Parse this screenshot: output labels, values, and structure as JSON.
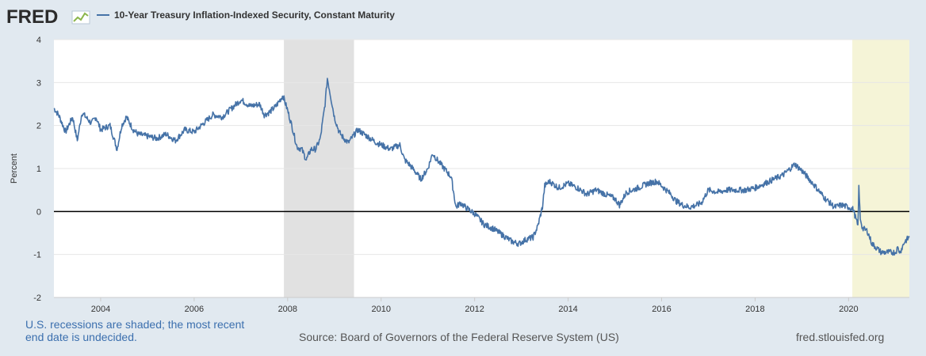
{
  "header": {
    "logo_text": "FRED",
    "legend_label": "10-Year Treasury Inflation-Indexed Security, Constant Maturity"
  },
  "footer": {
    "recession_note": "U.S. recessions are shaded; the most recent end date is undecided.",
    "source": "Source: Board of Governors of the Federal Reserve System (US)",
    "url": "fred.stlouisfed.org"
  },
  "colors": {
    "series": "#4572a7",
    "recession_shade": "#e1e1e1",
    "undecided_recession_shade": "#f5f4d7",
    "logo": "#2b2b2b",
    "logo_accent": "#8bb54b"
  },
  "chart_data": {
    "type": "line",
    "ylabel": "Percent",
    "ylim": [
      -2,
      4
    ],
    "xlim": [
      2003.0,
      2021.3
    ],
    "yticks": [
      -2,
      -1,
      0,
      1,
      2,
      3,
      4
    ],
    "xticks": [
      2004,
      2006,
      2008,
      2010,
      2012,
      2014,
      2016,
      2018,
      2020
    ],
    "zero_line": true,
    "recessions": [
      {
        "start": 2007.92,
        "end": 2009.42
      },
      {
        "start": 2020.08,
        "end": 2021.3,
        "undecided": true
      }
    ],
    "series": [
      {
        "name": "10-Year Treasury Inflation-Indexed Security, Constant Maturity",
        "x": [
          2003.0,
          2003.1,
          2003.25,
          2003.4,
          2003.5,
          2003.6,
          2003.8,
          2003.9,
          2004.0,
          2004.2,
          2004.35,
          2004.45,
          2004.55,
          2004.7,
          2004.8,
          2005.0,
          2005.2,
          2005.4,
          2005.6,
          2005.8,
          2006.0,
          2006.2,
          2006.4,
          2006.6,
          2006.8,
          2007.0,
          2007.2,
          2007.4,
          2007.5,
          2007.6,
          2007.75,
          2007.9,
          2008.0,
          2008.1,
          2008.2,
          2008.3,
          2008.4,
          2008.5,
          2008.6,
          2008.7,
          2008.8,
          2008.85,
          2008.9,
          2009.0,
          2009.1,
          2009.2,
          2009.3,
          2009.4,
          2009.5,
          2009.7,
          2009.9,
          2010.0,
          2010.2,
          2010.4,
          2010.5,
          2010.6,
          2010.75,
          2010.85,
          2011.0,
          2011.1,
          2011.2,
          2011.35,
          2011.5,
          2011.6,
          2011.7,
          2011.8,
          2012.0,
          2012.2,
          2012.4,
          2012.6,
          2012.8,
          2012.95,
          2013.1,
          2013.25,
          2013.35,
          2013.45,
          2013.5,
          2013.6,
          2013.8,
          2014.0,
          2014.2,
          2014.4,
          2014.6,
          2014.8,
          2015.0,
          2015.1,
          2015.25,
          2015.5,
          2015.7,
          2015.9,
          2016.0,
          2016.2,
          2016.3,
          2016.45,
          2016.6,
          2016.75,
          2016.85,
          2017.0,
          2017.2,
          2017.4,
          2017.6,
          2017.8,
          2018.0,
          2018.2,
          2018.4,
          2018.6,
          2018.8,
          2018.85,
          2019.0,
          2019.2,
          2019.35,
          2019.5,
          2019.6,
          2019.7,
          2019.85,
          2020.0,
          2020.1,
          2020.2,
          2020.22,
          2020.25,
          2020.3,
          2020.4,
          2020.5,
          2020.6,
          2020.7,
          2020.8,
          2020.9,
          2021.0,
          2021.05,
          2021.1,
          2021.2,
          2021.3
        ],
        "values": [
          2.4,
          2.25,
          1.85,
          2.2,
          1.65,
          2.3,
          2.05,
          2.2,
          1.9,
          2.0,
          1.45,
          2.0,
          2.2,
          1.9,
          1.8,
          1.75,
          1.7,
          1.8,
          1.65,
          1.9,
          1.85,
          2.05,
          2.25,
          2.2,
          2.4,
          2.6,
          2.45,
          2.5,
          2.25,
          2.3,
          2.45,
          2.7,
          2.35,
          1.95,
          1.5,
          1.45,
          1.2,
          1.45,
          1.45,
          1.7,
          2.5,
          3.1,
          2.8,
          2.2,
          1.85,
          1.7,
          1.6,
          1.75,
          1.9,
          1.75,
          1.6,
          1.55,
          1.45,
          1.55,
          1.2,
          1.1,
          0.9,
          0.75,
          1.0,
          1.35,
          1.2,
          1.0,
          0.8,
          0.1,
          0.2,
          0.1,
          -0.05,
          -0.3,
          -0.4,
          -0.55,
          -0.7,
          -0.75,
          -0.65,
          -0.6,
          -0.35,
          0.1,
          0.6,
          0.7,
          0.55,
          0.65,
          0.55,
          0.4,
          0.5,
          0.4,
          0.3,
          0.15,
          0.45,
          0.55,
          0.65,
          0.7,
          0.6,
          0.4,
          0.25,
          0.15,
          0.1,
          0.15,
          0.2,
          0.5,
          0.45,
          0.5,
          0.5,
          0.5,
          0.55,
          0.65,
          0.75,
          0.85,
          1.05,
          1.1,
          0.95,
          0.7,
          0.5,
          0.3,
          0.2,
          0.1,
          0.15,
          0.1,
          0.05,
          -0.35,
          0.55,
          -0.15,
          -0.4,
          -0.45,
          -0.75,
          -0.85,
          -0.95,
          -0.95,
          -0.95,
          -0.95,
          -0.85,
          -0.95,
          -0.7,
          -0.6
        ]
      }
    ]
  }
}
